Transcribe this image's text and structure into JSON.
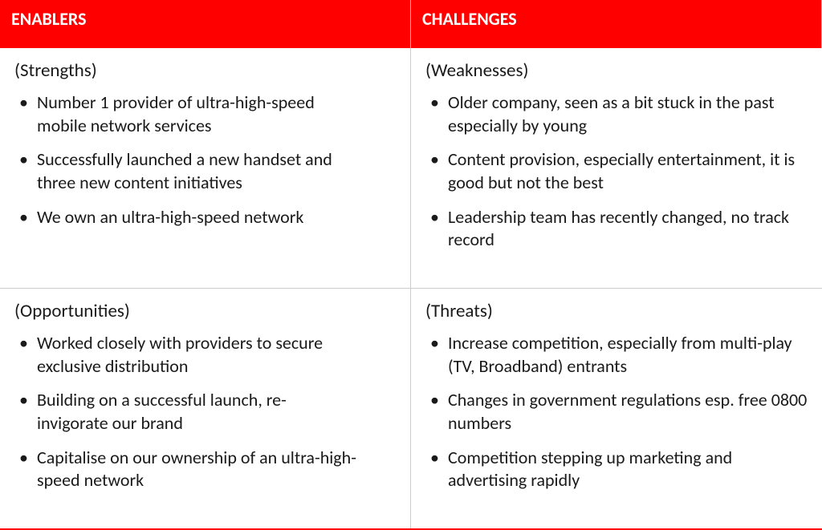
{
  "colors": {
    "accent": "#ff0000",
    "header_text": "#ffffff",
    "text": "#1a1a1a",
    "divider": "#cccccc",
    "background": "#ffffff"
  },
  "headers": {
    "left": "ENABLERS",
    "right": "CHALLENGES"
  },
  "quadrants": {
    "strengths": {
      "title": "(Strengths)",
      "items": [
        "Number 1 provider of ultra-high-speed mobile network services",
        "Successfully launched a new handset and three new content initiatives",
        "We own an ultra-high-speed network"
      ]
    },
    "weaknesses": {
      "title": "(Weaknesses)",
      "items": [
        "Older company, seen as a bit stuck in the past especially by young",
        "Content provision, especially entertainment, it is good but not the best",
        "Leadership team has recently changed, no track record"
      ]
    },
    "opportunities": {
      "title": "(Opportunities)",
      "items": [
        "Worked closely with providers to secure exclusive distribution",
        "Building on a successful launch, re-invigorate our brand",
        "Capitalise on our ownership of an ultra-high-speed network"
      ]
    },
    "threats": {
      "title": "(Threats)",
      "items": [
        "Increase competition, especially from multi-play (TV, Broadband) entrants",
        "Changes in government regulations esp. free 0800 numbers",
        "Competition stepping up marketing and advertising rapidly"
      ]
    }
  }
}
